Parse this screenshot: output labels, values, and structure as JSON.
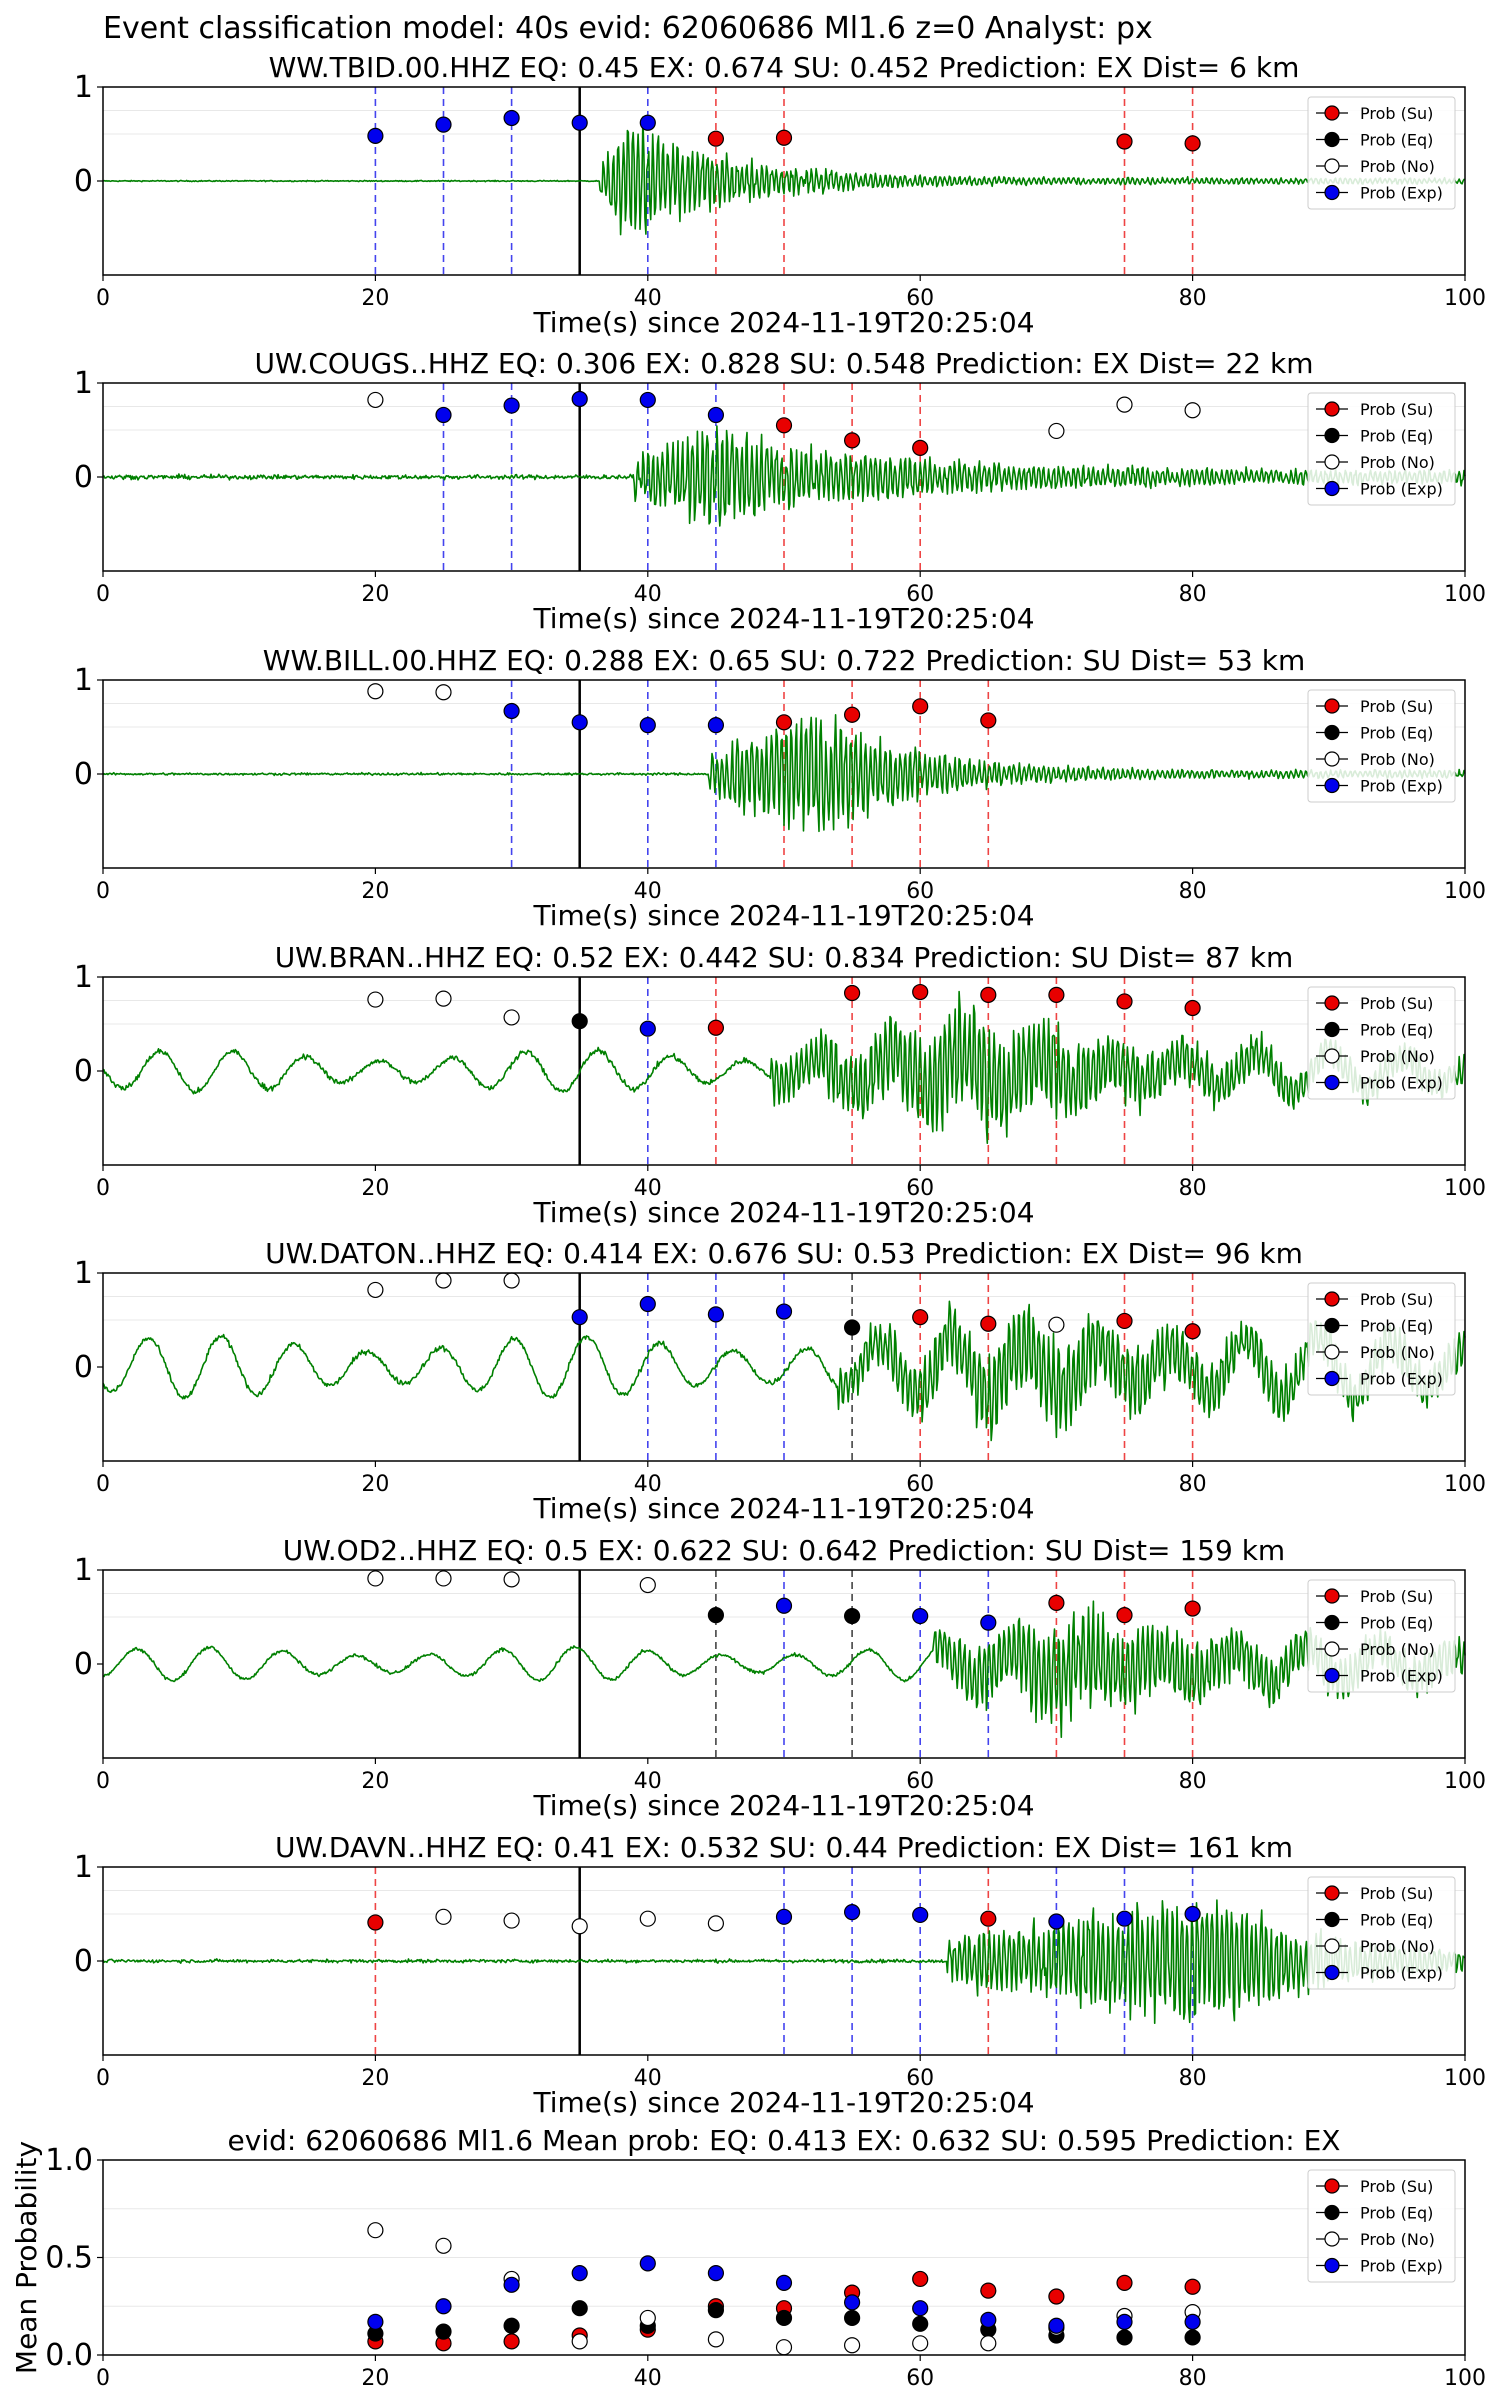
{
  "figure_title": "Event classification model: 40s evid: 62060686 Ml1.6 z=0 Analyst: px",
  "colors": {
    "su": "#e80000",
    "eq": "#000000",
    "no": "#ffffff",
    "ex": "#0000ee",
    "waveform": "#008000",
    "su_line": "#ee4444",
    "ex_line": "#4444ee",
    "eq_line": "#444444"
  },
  "legend_labels": [
    "Prob (Su)",
    "Prob (Eq)",
    "Prob (No)",
    "Prob (Exp)"
  ],
  "chart_data": [
    {
      "type": "scatter",
      "title": "WW.TBID.00.HHZ   EQ: 0.45  EX: 0.674  SU: 0.452   Prediction: EX    Dist= 6 km",
      "xlabel": "Time(s) since 2024-11-19T20:25:04",
      "xlim": [
        0,
        100
      ],
      "xticks": [
        "0",
        "20",
        "40",
        "60",
        "80",
        "100"
      ],
      "yticks": [
        "1",
        "0"
      ],
      "ylim": [
        -1,
        1
      ],
      "pick_time": 35,
      "waveform": {
        "onset": 36.5,
        "peak_time": 39,
        "peak_amp": 0.85,
        "decay_end": 60,
        "noise": 0.01,
        "tail_amp": 0.04,
        "swell": 0
      },
      "points": [
        {
          "x": 20,
          "y": 0.48,
          "class": "ex"
        },
        {
          "x": 25,
          "y": 0.6,
          "class": "ex"
        },
        {
          "x": 30,
          "y": 0.67,
          "class": "ex"
        },
        {
          "x": 35,
          "y": 0.62,
          "class": "ex"
        },
        {
          "x": 40,
          "y": 0.62,
          "class": "ex"
        },
        {
          "x": 45,
          "y": 0.45,
          "class": "su"
        },
        {
          "x": 50,
          "y": 0.46,
          "class": "su"
        },
        {
          "x": 75,
          "y": 0.42,
          "class": "su"
        },
        {
          "x": 80,
          "y": 0.4,
          "class": "su"
        }
      ]
    },
    {
      "type": "scatter",
      "title": "UW.COUGS..HHZ   EQ: 0.306  EX: 0.828  SU: 0.548   Prediction: EX    Dist= 22 km",
      "xlabel": "Time(s) since 2024-11-19T20:25:04",
      "xlim": [
        0,
        100
      ],
      "xticks": [
        "0",
        "20",
        "40",
        "60",
        "80",
        "100"
      ],
      "yticks": [
        "1",
        "0"
      ],
      "ylim": [
        -1,
        1
      ],
      "pick_time": 35,
      "waveform": {
        "onset": 39,
        "peak_time": 44,
        "peak_amp": 0.75,
        "decay_end": 80,
        "noise": 0.04,
        "tail_amp": 0.08,
        "swell": 0
      },
      "points": [
        {
          "x": 20,
          "y": 0.82,
          "class": "no"
        },
        {
          "x": 25,
          "y": 0.66,
          "class": "ex"
        },
        {
          "x": 30,
          "y": 0.76,
          "class": "ex"
        },
        {
          "x": 35,
          "y": 0.83,
          "class": "ex"
        },
        {
          "x": 40,
          "y": 0.82,
          "class": "ex"
        },
        {
          "x": 45,
          "y": 0.66,
          "class": "ex"
        },
        {
          "x": 50,
          "y": 0.55,
          "class": "su"
        },
        {
          "x": 55,
          "y": 0.39,
          "class": "su"
        },
        {
          "x": 60,
          "y": 0.31,
          "class": "su"
        },
        {
          "x": 70,
          "y": 0.49,
          "class": "no"
        },
        {
          "x": 75,
          "y": 0.77,
          "class": "no"
        },
        {
          "x": 80,
          "y": 0.71,
          "class": "no"
        }
      ]
    },
    {
      "type": "scatter",
      "title": "WW.BILL.00.HHZ   EQ: 0.288  EX: 0.65  SU: 0.722   Prediction: SU    Dist= 53 km",
      "xlabel": "Time(s) since 2024-11-19T20:25:04",
      "xlim": [
        0,
        100
      ],
      "xticks": [
        "0",
        "20",
        "40",
        "60",
        "80",
        "100"
      ],
      "yticks": [
        "1",
        "0"
      ],
      "ylim": [
        -1,
        1
      ],
      "pick_time": 35,
      "waveform": {
        "onset": 44.5,
        "peak_time": 53,
        "peak_amp": 0.9,
        "decay_end": 72,
        "noise": 0.02,
        "tail_amp": 0.05,
        "swell": 0
      },
      "points": [
        {
          "x": 20,
          "y": 0.88,
          "class": "no"
        },
        {
          "x": 25,
          "y": 0.87,
          "class": "no"
        },
        {
          "x": 30,
          "y": 0.67,
          "class": "ex"
        },
        {
          "x": 35,
          "y": 0.55,
          "class": "ex"
        },
        {
          "x": 40,
          "y": 0.52,
          "class": "ex"
        },
        {
          "x": 45,
          "y": 0.52,
          "class": "ex"
        },
        {
          "x": 50,
          "y": 0.55,
          "class": "su"
        },
        {
          "x": 55,
          "y": 0.63,
          "class": "su"
        },
        {
          "x": 60,
          "y": 0.72,
          "class": "su"
        },
        {
          "x": 65,
          "y": 0.57,
          "class": "su"
        }
      ]
    },
    {
      "type": "scatter",
      "title": "UW.BRAN..HHZ   EQ: 0.52  EX: 0.442  SU: 0.834   Prediction: SU    Dist= 87 km",
      "xlabel": "Time(s) since 2024-11-19T20:25:04",
      "xlim": [
        0,
        100
      ],
      "xticks": [
        "0",
        "20",
        "40",
        "60",
        "80",
        "100"
      ],
      "yticks": [
        "1",
        "0"
      ],
      "ylim": [
        -1,
        1
      ],
      "pick_time": 35,
      "waveform": {
        "onset": 49,
        "peak_time": 65,
        "peak_amp": 0.8,
        "decay_end": 95,
        "noise": 0.05,
        "tail_amp": 0.2,
        "swell": 0.22
      },
      "points": [
        {
          "x": 20,
          "y": 0.76,
          "class": "no"
        },
        {
          "x": 25,
          "y": 0.77,
          "class": "no"
        },
        {
          "x": 30,
          "y": 0.57,
          "class": "no"
        },
        {
          "x": 35,
          "y": 0.53,
          "class": "eq"
        },
        {
          "x": 40,
          "y": 0.45,
          "class": "ex"
        },
        {
          "x": 45,
          "y": 0.46,
          "class": "su"
        },
        {
          "x": 55,
          "y": 0.83,
          "class": "su"
        },
        {
          "x": 60,
          "y": 0.84,
          "class": "su"
        },
        {
          "x": 65,
          "y": 0.81,
          "class": "su"
        },
        {
          "x": 70,
          "y": 0.81,
          "class": "su"
        },
        {
          "x": 75,
          "y": 0.74,
          "class": "su"
        },
        {
          "x": 80,
          "y": 0.67,
          "class": "su"
        }
      ]
    },
    {
      "type": "scatter",
      "title": "UW.DATON..HHZ   EQ: 0.414  EX: 0.676  SU: 0.53   Prediction: EX    Dist= 96 km",
      "xlabel": "Time(s) since 2024-11-19T20:25:04",
      "xlim": [
        0,
        100
      ],
      "xticks": [
        "0",
        "20",
        "40",
        "60",
        "80",
        "100"
      ],
      "yticks": [
        "1",
        "0"
      ],
      "ylim": [
        -1,
        1
      ],
      "pick_time": 35,
      "waveform": {
        "onset": 54,
        "peak_time": 68,
        "peak_amp": 0.7,
        "decay_end": 100,
        "noise": 0.05,
        "tail_amp": 0.25,
        "swell": 0.33
      },
      "points": [
        {
          "x": 20,
          "y": 0.82,
          "class": "no"
        },
        {
          "x": 25,
          "y": 0.92,
          "class": "no"
        },
        {
          "x": 30,
          "y": 0.92,
          "class": "no"
        },
        {
          "x": 35,
          "y": 0.53,
          "class": "ex"
        },
        {
          "x": 40,
          "y": 0.67,
          "class": "ex"
        },
        {
          "x": 45,
          "y": 0.56,
          "class": "ex"
        },
        {
          "x": 50,
          "y": 0.59,
          "class": "ex"
        },
        {
          "x": 55,
          "y": 0.42,
          "class": "eq"
        },
        {
          "x": 60,
          "y": 0.53,
          "class": "su"
        },
        {
          "x": 65,
          "y": 0.46,
          "class": "su"
        },
        {
          "x": 70,
          "y": 0.45,
          "class": "no"
        },
        {
          "x": 75,
          "y": 0.49,
          "class": "su"
        },
        {
          "x": 80,
          "y": 0.38,
          "class": "su"
        }
      ]
    },
    {
      "type": "scatter",
      "title": "UW.OD2..HHZ   EQ: 0.5  EX: 0.622  SU: 0.642   Prediction: SU    Dist= 159 km",
      "xlabel": "Time(s) since 2024-11-19T20:25:04",
      "xlim": [
        0,
        100
      ],
      "xticks": [
        "0",
        "20",
        "40",
        "60",
        "80",
        "100"
      ],
      "yticks": [
        "1",
        "0"
      ],
      "ylim": [
        -1,
        1
      ],
      "pick_time": 35,
      "waveform": {
        "onset": 61,
        "peak_time": 70,
        "peak_amp": 0.75,
        "decay_end": 100,
        "noise": 0.03,
        "tail_amp": 0.25,
        "swell": 0.18
      },
      "points": [
        {
          "x": 20,
          "y": 0.91,
          "class": "no"
        },
        {
          "x": 25,
          "y": 0.91,
          "class": "no"
        },
        {
          "x": 30,
          "y": 0.9,
          "class": "no"
        },
        {
          "x": 40,
          "y": 0.84,
          "class": "no"
        },
        {
          "x": 45,
          "y": 0.52,
          "class": "eq"
        },
        {
          "x": 50,
          "y": 0.62,
          "class": "ex"
        },
        {
          "x": 55,
          "y": 0.51,
          "class": "eq"
        },
        {
          "x": 60,
          "y": 0.51,
          "class": "ex"
        },
        {
          "x": 65,
          "y": 0.44,
          "class": "ex"
        },
        {
          "x": 70,
          "y": 0.65,
          "class": "su"
        },
        {
          "x": 75,
          "y": 0.52,
          "class": "su"
        },
        {
          "x": 80,
          "y": 0.59,
          "class": "su"
        }
      ]
    },
    {
      "type": "scatter",
      "title": "UW.DAVN..HHZ   EQ: 0.41  EX: 0.532  SU: 0.44   Prediction: EX    Dist= 161 km",
      "xlabel": "Time(s) since 2024-11-19T20:25:04",
      "xlim": [
        0,
        100
      ],
      "xticks": [
        "0",
        "20",
        "40",
        "60",
        "80",
        "100"
      ],
      "yticks": [
        "1",
        "0"
      ],
      "ylim": [
        -1,
        1
      ],
      "pick_time": 35,
      "waveform": {
        "onset": 62,
        "peak_time": 83,
        "peak_amp": 0.95,
        "decay_end": 100,
        "noise": 0.03,
        "tail_amp": 0.1,
        "swell": 0
      },
      "points": [
        {
          "x": 20,
          "y": 0.41,
          "class": "su"
        },
        {
          "x": 25,
          "y": 0.47,
          "class": "no"
        },
        {
          "x": 30,
          "y": 0.43,
          "class": "no"
        },
        {
          "x": 35,
          "y": 0.37,
          "class": "no"
        },
        {
          "x": 40,
          "y": 0.45,
          "class": "no"
        },
        {
          "x": 45,
          "y": 0.4,
          "class": "no"
        },
        {
          "x": 50,
          "y": 0.47,
          "class": "ex"
        },
        {
          "x": 55,
          "y": 0.52,
          "class": "ex"
        },
        {
          "x": 60,
          "y": 0.49,
          "class": "ex"
        },
        {
          "x": 65,
          "y": 0.45,
          "class": "su"
        },
        {
          "x": 70,
          "y": 0.42,
          "class": "ex"
        },
        {
          "x": 75,
          "y": 0.45,
          "class": "ex"
        },
        {
          "x": 80,
          "y": 0.5,
          "class": "ex"
        }
      ]
    },
    {
      "type": "scatter",
      "title": "evid: 62060686  Ml1.6   Mean prob:   EQ: 0.413  EX: 0.632  SU: 0.595   Prediction: EX",
      "xlabel": "",
      "ylabel": "Mean Probability",
      "xlim": [
        0,
        100
      ],
      "ylim": [
        0,
        1
      ],
      "xticks": [
        "0",
        "20",
        "40",
        "60",
        "80",
        "100"
      ],
      "yticks": [
        "1.0",
        "0.5",
        "0.0"
      ],
      "x": [
        20,
        25,
        30,
        35,
        40,
        45,
        50,
        55,
        60,
        65,
        70,
        75,
        80
      ],
      "series": [
        {
          "name": "Prob (Su)",
          "class": "su",
          "values": [
            0.07,
            0.06,
            0.07,
            0.1,
            0.13,
            0.25,
            0.24,
            0.32,
            0.39,
            0.33,
            0.3,
            0.37,
            0.35
          ]
        },
        {
          "name": "Prob (Eq)",
          "class": "eq",
          "values": [
            0.11,
            0.12,
            0.15,
            0.24,
            0.15,
            0.23,
            0.19,
            0.19,
            0.16,
            0.13,
            0.1,
            0.09,
            0.09
          ]
        },
        {
          "name": "Prob (No)",
          "class": "no",
          "values": [
            0.64,
            0.56,
            0.39,
            0.07,
            0.19,
            0.08,
            0.04,
            0.05,
            0.06,
            0.06,
            0.14,
            0.2,
            0.22
          ]
        },
        {
          "name": "Prob (Exp)",
          "class": "ex",
          "values": [
            0.17,
            0.25,
            0.36,
            0.42,
            0.47,
            0.42,
            0.37,
            0.27,
            0.24,
            0.18,
            0.15,
            0.17,
            0.17
          ]
        }
      ]
    }
  ]
}
